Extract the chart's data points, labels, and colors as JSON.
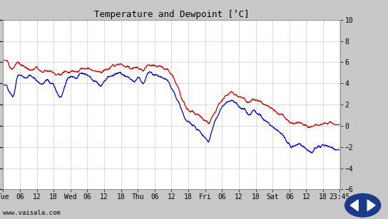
{
  "title": "Temperature and Dewpoint [ʼC]",
  "ylim": [
    -6,
    10
  ],
  "yticks": [
    -6,
    -4,
    -2,
    0,
    2,
    4,
    6,
    8,
    10
  ],
  "background_color": "#c8c8c8",
  "plot_bg_color": "#ffffff",
  "grid_color": "#cccccc",
  "temp_color": "#cc0000",
  "dewp_color": "#0000cc",
  "line_width": 0.9,
  "watermark": "www.vaisala.com",
  "title_fontsize": 9,
  "tick_fontsize": 7,
  "watermark_fontsize": 6.5
}
